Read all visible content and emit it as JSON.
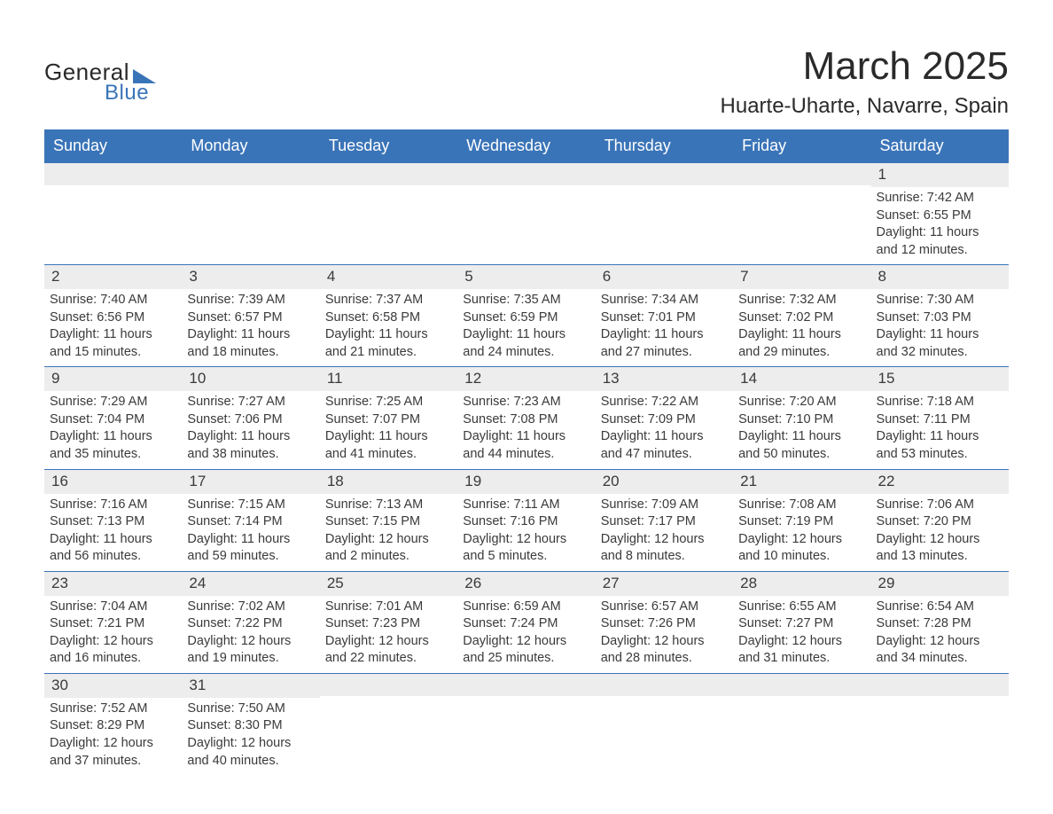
{
  "logo": {
    "line1": "General",
    "line2": "Blue"
  },
  "title": "March 2025",
  "location": "Huarte-Uharte, Navarre, Spain",
  "colors": {
    "header_bg": "#3a74b8",
    "header_text": "#ffffff",
    "row_border": "#3a74b8",
    "daynum_bg": "#ededed",
    "body_text": "#3a3a3a",
    "page_bg": "#ffffff"
  },
  "typography": {
    "title_fontsize_pt": 33,
    "location_fontsize_pt": 18,
    "dow_fontsize_pt": 14,
    "body_fontsize_pt": 11,
    "font_family": "Arial"
  },
  "days_of_week": [
    "Sunday",
    "Monday",
    "Tuesday",
    "Wednesday",
    "Thursday",
    "Friday",
    "Saturday"
  ],
  "labels": {
    "sunrise": "Sunrise:",
    "sunset": "Sunset:",
    "daylight": "Daylight:"
  },
  "weeks": [
    [
      {
        "day": null
      },
      {
        "day": null
      },
      {
        "day": null
      },
      {
        "day": null
      },
      {
        "day": null
      },
      {
        "day": null
      },
      {
        "day": 1,
        "sunrise": "7:42 AM",
        "sunset": "6:55 PM",
        "daylight": "11 hours and 12 minutes."
      }
    ],
    [
      {
        "day": 2,
        "sunrise": "7:40 AM",
        "sunset": "6:56 PM",
        "daylight": "11 hours and 15 minutes."
      },
      {
        "day": 3,
        "sunrise": "7:39 AM",
        "sunset": "6:57 PM",
        "daylight": "11 hours and 18 minutes."
      },
      {
        "day": 4,
        "sunrise": "7:37 AM",
        "sunset": "6:58 PM",
        "daylight": "11 hours and 21 minutes."
      },
      {
        "day": 5,
        "sunrise": "7:35 AM",
        "sunset": "6:59 PM",
        "daylight": "11 hours and 24 minutes."
      },
      {
        "day": 6,
        "sunrise": "7:34 AM",
        "sunset": "7:01 PM",
        "daylight": "11 hours and 27 minutes."
      },
      {
        "day": 7,
        "sunrise": "7:32 AM",
        "sunset": "7:02 PM",
        "daylight": "11 hours and 29 minutes."
      },
      {
        "day": 8,
        "sunrise": "7:30 AM",
        "sunset": "7:03 PM",
        "daylight": "11 hours and 32 minutes."
      }
    ],
    [
      {
        "day": 9,
        "sunrise": "7:29 AM",
        "sunset": "7:04 PM",
        "daylight": "11 hours and 35 minutes."
      },
      {
        "day": 10,
        "sunrise": "7:27 AM",
        "sunset": "7:06 PM",
        "daylight": "11 hours and 38 minutes."
      },
      {
        "day": 11,
        "sunrise": "7:25 AM",
        "sunset": "7:07 PM",
        "daylight": "11 hours and 41 minutes."
      },
      {
        "day": 12,
        "sunrise": "7:23 AM",
        "sunset": "7:08 PM",
        "daylight": "11 hours and 44 minutes."
      },
      {
        "day": 13,
        "sunrise": "7:22 AM",
        "sunset": "7:09 PM",
        "daylight": "11 hours and 47 minutes."
      },
      {
        "day": 14,
        "sunrise": "7:20 AM",
        "sunset": "7:10 PM",
        "daylight": "11 hours and 50 minutes."
      },
      {
        "day": 15,
        "sunrise": "7:18 AM",
        "sunset": "7:11 PM",
        "daylight": "11 hours and 53 minutes."
      }
    ],
    [
      {
        "day": 16,
        "sunrise": "7:16 AM",
        "sunset": "7:13 PM",
        "daylight": "11 hours and 56 minutes."
      },
      {
        "day": 17,
        "sunrise": "7:15 AM",
        "sunset": "7:14 PM",
        "daylight": "11 hours and 59 minutes."
      },
      {
        "day": 18,
        "sunrise": "7:13 AM",
        "sunset": "7:15 PM",
        "daylight": "12 hours and 2 minutes."
      },
      {
        "day": 19,
        "sunrise": "7:11 AM",
        "sunset": "7:16 PM",
        "daylight": "12 hours and 5 minutes."
      },
      {
        "day": 20,
        "sunrise": "7:09 AM",
        "sunset": "7:17 PM",
        "daylight": "12 hours and 8 minutes."
      },
      {
        "day": 21,
        "sunrise": "7:08 AM",
        "sunset": "7:19 PM",
        "daylight": "12 hours and 10 minutes."
      },
      {
        "day": 22,
        "sunrise": "7:06 AM",
        "sunset": "7:20 PM",
        "daylight": "12 hours and 13 minutes."
      }
    ],
    [
      {
        "day": 23,
        "sunrise": "7:04 AM",
        "sunset": "7:21 PM",
        "daylight": "12 hours and 16 minutes."
      },
      {
        "day": 24,
        "sunrise": "7:02 AM",
        "sunset": "7:22 PM",
        "daylight": "12 hours and 19 minutes."
      },
      {
        "day": 25,
        "sunrise": "7:01 AM",
        "sunset": "7:23 PM",
        "daylight": "12 hours and 22 minutes."
      },
      {
        "day": 26,
        "sunrise": "6:59 AM",
        "sunset": "7:24 PM",
        "daylight": "12 hours and 25 minutes."
      },
      {
        "day": 27,
        "sunrise": "6:57 AM",
        "sunset": "7:26 PM",
        "daylight": "12 hours and 28 minutes."
      },
      {
        "day": 28,
        "sunrise": "6:55 AM",
        "sunset": "7:27 PM",
        "daylight": "12 hours and 31 minutes."
      },
      {
        "day": 29,
        "sunrise": "6:54 AM",
        "sunset": "7:28 PM",
        "daylight": "12 hours and 34 minutes."
      }
    ],
    [
      {
        "day": 30,
        "sunrise": "7:52 AM",
        "sunset": "8:29 PM",
        "daylight": "12 hours and 37 minutes."
      },
      {
        "day": 31,
        "sunrise": "7:50 AM",
        "sunset": "8:30 PM",
        "daylight": "12 hours and 40 minutes."
      },
      {
        "day": null
      },
      {
        "day": null
      },
      {
        "day": null
      },
      {
        "day": null
      },
      {
        "day": null
      }
    ]
  ]
}
